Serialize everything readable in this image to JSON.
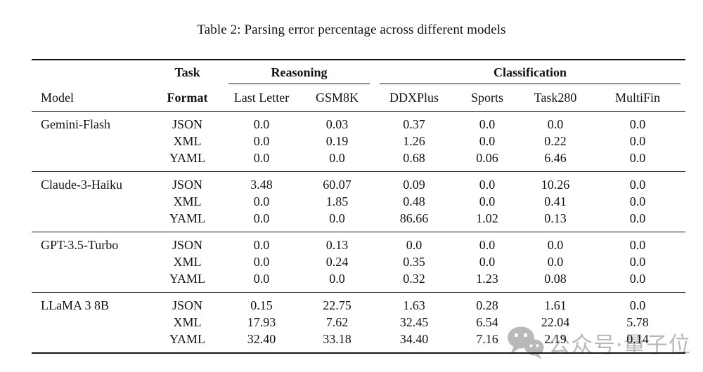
{
  "title": "Table 2: Parsing error percentage across different models",
  "table": {
    "header": {
      "model": "Model",
      "task": "Task",
      "format": "Format",
      "reasoning": {
        "label": "Reasoning",
        "cols": [
          "Last Letter",
          "GSM8K"
        ]
      },
      "classification": {
        "label": "Classification",
        "cols": [
          "DDXPlus",
          "Sports",
          "Task280",
          "MultiFin"
        ]
      }
    },
    "rows": [
      {
        "model": "Gemini-Flash",
        "formats": [
          {
            "format": "JSON",
            "values": [
              "0.0",
              "0.03",
              "0.37",
              "0.0",
              "0.0",
              "0.0"
            ]
          },
          {
            "format": "XML",
            "values": [
              "0.0",
              "0.19",
              "1.26",
              "0.0",
              "0.22",
              "0.0"
            ]
          },
          {
            "format": "YAML",
            "values": [
              "0.0",
              "0.0",
              "0.68",
              "0.06",
              "6.46",
              "0.0"
            ]
          }
        ]
      },
      {
        "model": "Claude-3-Haiku",
        "formats": [
          {
            "format": "JSON",
            "values": [
              "3.48",
              "60.07",
              "0.09",
              "0.0",
              "10.26",
              "0.0"
            ]
          },
          {
            "format": "XML",
            "values": [
              "0.0",
              "1.85",
              "0.48",
              "0.0",
              "0.41",
              "0.0"
            ]
          },
          {
            "format": "YAML",
            "values": [
              "0.0",
              "0.0",
              "86.66",
              "1.02",
              "0.13",
              "0.0"
            ]
          }
        ]
      },
      {
        "model": "GPT-3.5-Turbo",
        "formats": [
          {
            "format": "JSON",
            "values": [
              "0.0",
              "0.13",
              "0.0",
              "0.0",
              "0.0",
              "0.0"
            ]
          },
          {
            "format": "XML",
            "values": [
              "0.0",
              "0.24",
              "0.35",
              "0.0",
              "0.0",
              "0.0"
            ]
          },
          {
            "format": "YAML",
            "values": [
              "0.0",
              "0.0",
              "0.32",
              "1.23",
              "0.08",
              "0.0"
            ]
          }
        ]
      },
      {
        "model": "LLaMA 3 8B",
        "formats": [
          {
            "format": "JSON",
            "values": [
              "0.15",
              "22.75",
              "1.63",
              "0.28",
              "1.61",
              "0.0"
            ]
          },
          {
            "format": "XML",
            "values": [
              "17.93",
              "7.62",
              "32.45",
              "6.54",
              "22.04",
              "5.78"
            ]
          },
          {
            "format": "YAML",
            "values": [
              "32.40",
              "33.18",
              "34.40",
              "7.16",
              "2.19",
              "0.14"
            ]
          }
        ]
      }
    ]
  },
  "watermark": {
    "icon": "wechat-icon",
    "text": "公众号·量子位",
    "color": "#b9b9b9"
  }
}
